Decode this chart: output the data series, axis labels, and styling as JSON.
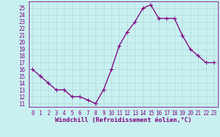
{
  "x": [
    0,
    1,
    2,
    3,
    4,
    5,
    6,
    7,
    8,
    9,
    10,
    11,
    12,
    13,
    14,
    15,
    16,
    17,
    18,
    19,
    20,
    21,
    22,
    23
  ],
  "y": [
    16,
    15,
    14,
    13,
    13,
    12,
    12,
    11.5,
    11,
    13,
    16,
    19.5,
    21.5,
    23,
    25,
    25.5,
    23.5,
    23.5,
    23.5,
    21,
    19,
    18,
    17,
    17
  ],
  "line_color": "#800080",
  "marker": "D",
  "marker_size": 2.0,
  "linewidth": 1.0,
  "xlabel": "Windchill (Refroidissement éolien,°C)",
  "xlabel_fontsize": 6.5,
  "ylabel_ticks": [
    11,
    12,
    13,
    14,
    15,
    16,
    17,
    18,
    19,
    20,
    21,
    22,
    23,
    24,
    25
  ],
  "ylim": [
    10.5,
    26.0
  ],
  "xlim": [
    -0.5,
    23.5
  ],
  "xtick_labels": [
    "0",
    "1",
    "2",
    "3",
    "4",
    "5",
    "6",
    "7",
    "8",
    "9",
    "10",
    "11",
    "12",
    "13",
    "14",
    "15",
    "16",
    "17",
    "18",
    "19",
    "20",
    "21",
    "22",
    "23"
  ],
  "tick_fontsize": 5.5,
  "bg_color": "#c8f0f0",
  "grid_color": "#b0d8d8",
  "axes_color": "#800080"
}
